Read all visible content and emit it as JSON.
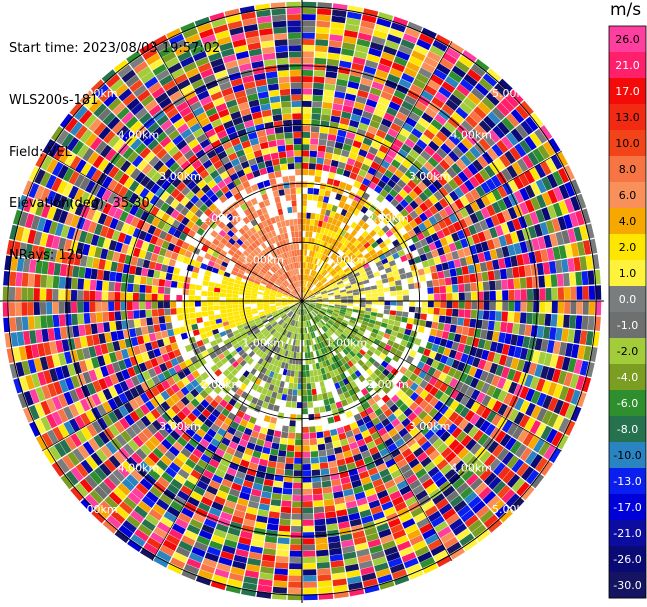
{
  "header": {
    "start_time": "Start time: 2023/08/03 19:57:02",
    "instrument": "WLS200s-181",
    "field": "Field: VEL",
    "elevation": "Elevation(deg): 35.30",
    "nrays": "NRays: 120"
  },
  "chart_data": {
    "type": "heatmap",
    "subtype": "polar-ppi-doppler-velocity",
    "title": "",
    "n_rays": 120,
    "range_ring_labels": [
      "1.00km",
      "2.00km",
      "3.00km",
      "4.00km",
      "5.00km"
    ],
    "range_rings_km": [
      1,
      2,
      3,
      4,
      5
    ],
    "max_range_km": 5.1,
    "grid": true,
    "colorbar": {
      "unit": "m/s",
      "ticks": [
        "26.0",
        "21.0",
        "17.0",
        "13.0",
        "10.0",
        "8.0",
        "6.0",
        "4.0",
        "2.0",
        "1.0",
        "0.0",
        "-1.0",
        "-2.0",
        "-4.0",
        "-6.0",
        "-8.0",
        "-10.0",
        "-13.0",
        "-17.0",
        "-21.0",
        "-26.0",
        "-30.0"
      ],
      "colors": [
        "#ff3fa0",
        "#ff1f6a",
        "#f50a0a",
        "#f22a14",
        "#f24418",
        "#f77444",
        "#f9905a",
        "#f7a800",
        "#ffe600",
        "#fff23d",
        "#7a7d7d",
        "#6e7070",
        "#a3cc3b",
        "#7b9d22",
        "#2f8e2d",
        "#26724e",
        "#2a84c2",
        "#0a1eef",
        "#0000d9",
        "#0c0ca1",
        "#0a0a77",
        "#141462"
      ]
    },
    "near_field": {
      "range_km": [
        0,
        2.3
      ],
      "description_sectors": [
        {
          "azimuth_deg": [
            290,
            360
          ],
          "velocity_ms": [
            4,
            8
          ]
        },
        {
          "azimuth_deg": [
            0,
            60
          ],
          "velocity_ms": [
            1,
            4
          ]
        },
        {
          "azimuth_deg": [
            60,
            100
          ],
          "velocity_ms": [
            -1,
            1
          ]
        },
        {
          "azimuth_deg": [
            100,
            180
          ],
          "velocity_ms": [
            -8,
            -2
          ]
        },
        {
          "azimuth_deg": [
            180,
            250
          ],
          "velocity_ms": [
            -4,
            -1
          ]
        },
        {
          "azimuth_deg": [
            250,
            290
          ],
          "velocity_ms": [
            1,
            2
          ]
        }
      ]
    },
    "far_field": {
      "range_km": [
        2.3,
        5.1
      ],
      "description": "noise-dominated, full colour range"
    }
  }
}
